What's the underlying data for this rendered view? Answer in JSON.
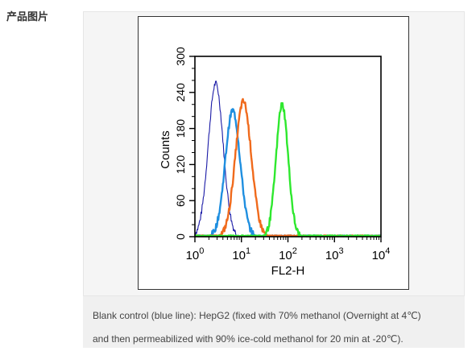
{
  "section": {
    "label": "产品图片"
  },
  "caption": {
    "line1": "Blank control (blue line): HepG2 (fixed with 70% methanol (Overnight at 4℃)",
    "line2": "and then permeabilized with 90% ice-cold methanol for 20 min at -20℃)."
  },
  "chart_data": {
    "type": "line",
    "title": "",
    "xlabel": "FL2-H",
    "ylabel": "Counts",
    "x_scale": "log",
    "xlim": [
      1,
      10000
    ],
    "ylim": [
      0,
      300
    ],
    "x_ticks": [
      {
        "base": "10",
        "exp": "0",
        "value": 1
      },
      {
        "base": "10",
        "exp": "1",
        "value": 10
      },
      {
        "base": "10",
        "exp": "2",
        "value": 100
      },
      {
        "base": "10",
        "exp": "3",
        "value": 1000
      },
      {
        "base": "10",
        "exp": "4",
        "value": 10000
      }
    ],
    "y_ticks": [
      "0",
      "60",
      "120",
      "180",
      "240",
      "300"
    ],
    "grid": false,
    "legend": "none",
    "series": [
      {
        "color": "#1a1aa6",
        "peak_x": 2.8,
        "peak_y": 255,
        "spread": 0.16,
        "x": [
          1,
          1.5,
          2,
          2.4,
          2.8,
          3.3,
          4,
          5,
          6,
          7,
          8
        ],
        "y": [
          5,
          55,
          165,
          230,
          255,
          215,
          110,
          40,
          15,
          5,
          2
        ]
      },
      {
        "color": "#1f8fe0",
        "peak_x": 6.5,
        "peak_y": 210,
        "spread": 0.16,
        "x": [
          2,
          3,
          4,
          5,
          6.5,
          8,
          10,
          13,
          17,
          22
        ],
        "y": [
          2,
          15,
          65,
          160,
          210,
          175,
          100,
          40,
          12,
          2
        ]
      },
      {
        "color": "#f06a1c",
        "peak_x": 11,
        "peak_y": 225,
        "spread": 0.17,
        "x": [
          4,
          6,
          8,
          10,
          11,
          13,
          16,
          22,
          30,
          40
        ],
        "y": [
          2,
          30,
          135,
          210,
          225,
          200,
          130,
          40,
          10,
          2
        ]
      },
      {
        "color": "#2ee82e",
        "peak_x": 75,
        "peak_y": 220,
        "spread": 0.13,
        "x": [
          35,
          45,
          55,
          65,
          75,
          85,
          100,
          120,
          150
        ],
        "y": [
          2,
          30,
          120,
          195,
          220,
          200,
          120,
          35,
          3
        ]
      }
    ]
  }
}
